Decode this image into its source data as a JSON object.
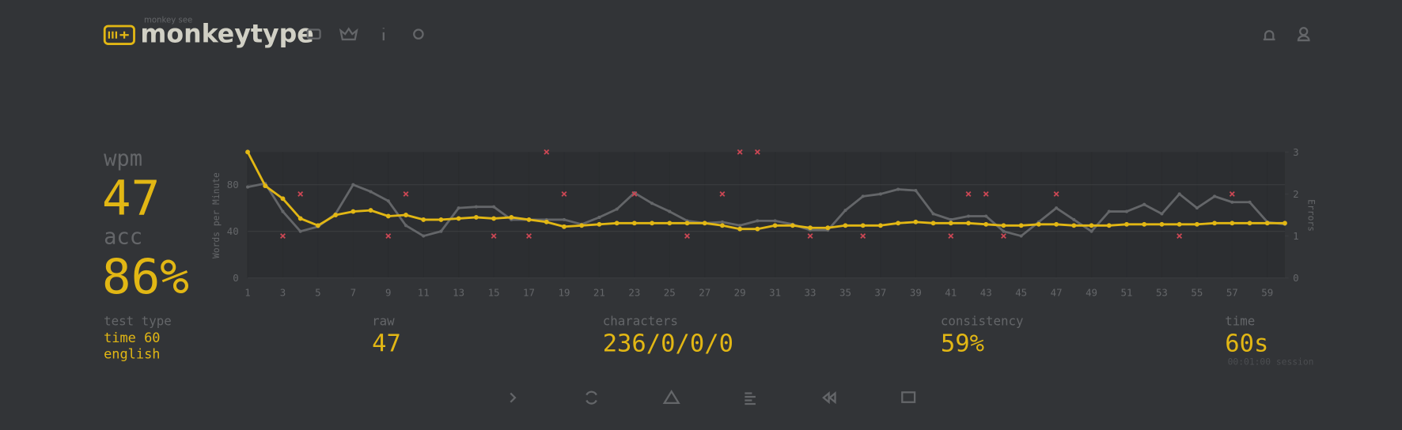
{
  "header": {
    "logo_small": "monkey see",
    "logo": "monkeytype"
  },
  "stats": {
    "wpm_label": "wpm",
    "wpm": "47",
    "acc_label": "acc",
    "acc": "86%"
  },
  "details": {
    "test_type_label": "test type",
    "test_type": "time 60",
    "language": "english",
    "raw_label": "raw",
    "raw": "47",
    "characters_label": "characters",
    "characters": "236/0/0/0",
    "consistency_label": "consistency",
    "consistency": "59%",
    "time_label": "time",
    "time": "60s",
    "session": "00:01:00 session"
  },
  "chart_data": {
    "type": "line",
    "y_label": "Words per Minute",
    "y2_label": "Errors",
    "x": [
      1,
      2,
      3,
      4,
      5,
      6,
      7,
      8,
      9,
      10,
      11,
      12,
      13,
      14,
      15,
      16,
      17,
      18,
      19,
      20,
      21,
      22,
      23,
      24,
      25,
      26,
      27,
      28,
      29,
      30,
      31,
      32,
      33,
      34,
      35,
      36,
      37,
      38,
      39,
      40,
      41,
      42,
      43,
      44,
      45,
      46,
      47,
      48,
      49,
      50,
      51,
      52,
      53,
      54,
      55,
      56,
      57,
      58,
      59,
      60
    ],
    "xlim": [
      1,
      60
    ],
    "xticks": [
      1,
      3,
      5,
      7,
      9,
      11,
      13,
      15,
      17,
      19,
      21,
      23,
      25,
      27,
      29,
      31,
      33,
      35,
      37,
      39,
      41,
      43,
      45,
      47,
      49,
      51,
      53,
      55,
      57,
      59
    ],
    "ylim": [
      0,
      108
    ],
    "yticks": [
      0,
      40,
      80
    ],
    "y2lim": [
      0,
      3
    ],
    "y2ticks": [
      0,
      1,
      2,
      3
    ],
    "grid": true,
    "series": [
      {
        "color": "#646669",
        "values": [
          78,
          81,
          57,
          40,
          44,
          55,
          80,
          74,
          66,
          45,
          36,
          40,
          60,
          61,
          61,
          50,
          50,
          50,
          50,
          46,
          52,
          59,
          73,
          64,
          57,
          49,
          47,
          48,
          45,
          49,
          49,
          46,
          41,
          41,
          58,
          70,
          72,
          76,
          75,
          55,
          50,
          53,
          53,
          40,
          36,
          48,
          60,
          50,
          40,
          57,
          57,
          63,
          55,
          72,
          60,
          70,
          65,
          65,
          48,
          46
        ]
      },
      {
        "color": "#e2b714",
        "values": [
          108,
          79,
          68,
          51,
          45,
          54,
          57,
          58,
          53,
          54,
          50,
          50,
          51,
          52,
          51,
          52,
          50,
          48,
          44,
          45,
          46,
          47,
          47,
          47,
          47,
          47,
          47,
          45,
          42,
          42,
          45,
          45,
          43,
          43,
          45,
          45,
          45,
          47,
          48,
          47,
          47,
          47,
          46,
          45,
          45,
          46,
          46,
          45,
          45,
          45,
          46,
          46,
          46,
          46,
          46,
          47,
          47,
          47,
          47,
          47
        ]
      },
      {
        "type": "scatter",
        "axis": "y2",
        "color": "#ca4754",
        "x": [
          3,
          4,
          9,
          10,
          15,
          17,
          18,
          19,
          23,
          26,
          28,
          29,
          30,
          33,
          36,
          41,
          42,
          43,
          44,
          47,
          54,
          57
        ],
        "values": [
          1,
          2,
          1,
          2,
          1,
          1,
          3,
          2,
          2,
          1,
          2,
          3,
          3,
          1,
          1,
          1,
          2,
          2,
          1,
          2,
          1,
          2
        ]
      }
    ]
  }
}
